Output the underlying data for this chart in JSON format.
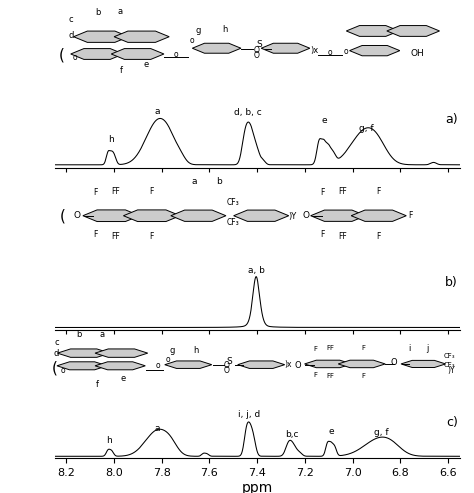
{
  "xmin": 6.55,
  "xmax": 8.25,
  "xlabel": "ppm",
  "xlabel_fontsize": 10,
  "tick_fontsize": 8,
  "xticks": [
    8.2,
    8.0,
    7.8,
    7.6,
    7.4,
    7.2,
    7.0,
    6.8,
    6.6
  ],
  "xtick_labels": [
    "8.2",
    "8.0",
    "7.8",
    "7.6",
    "7.4",
    "7.2",
    "7.0",
    "6.8",
    "6.6"
  ],
  "panel_labels": [
    "a)",
    "b)",
    "c)"
  ],
  "panel_label_fontsize": 9,
  "background_color": "#ffffff",
  "line_color": "#000000",
  "peak_label_fontsize": 6.5,
  "ring_color": "#cccccc",
  "ring_lw": 0.7
}
